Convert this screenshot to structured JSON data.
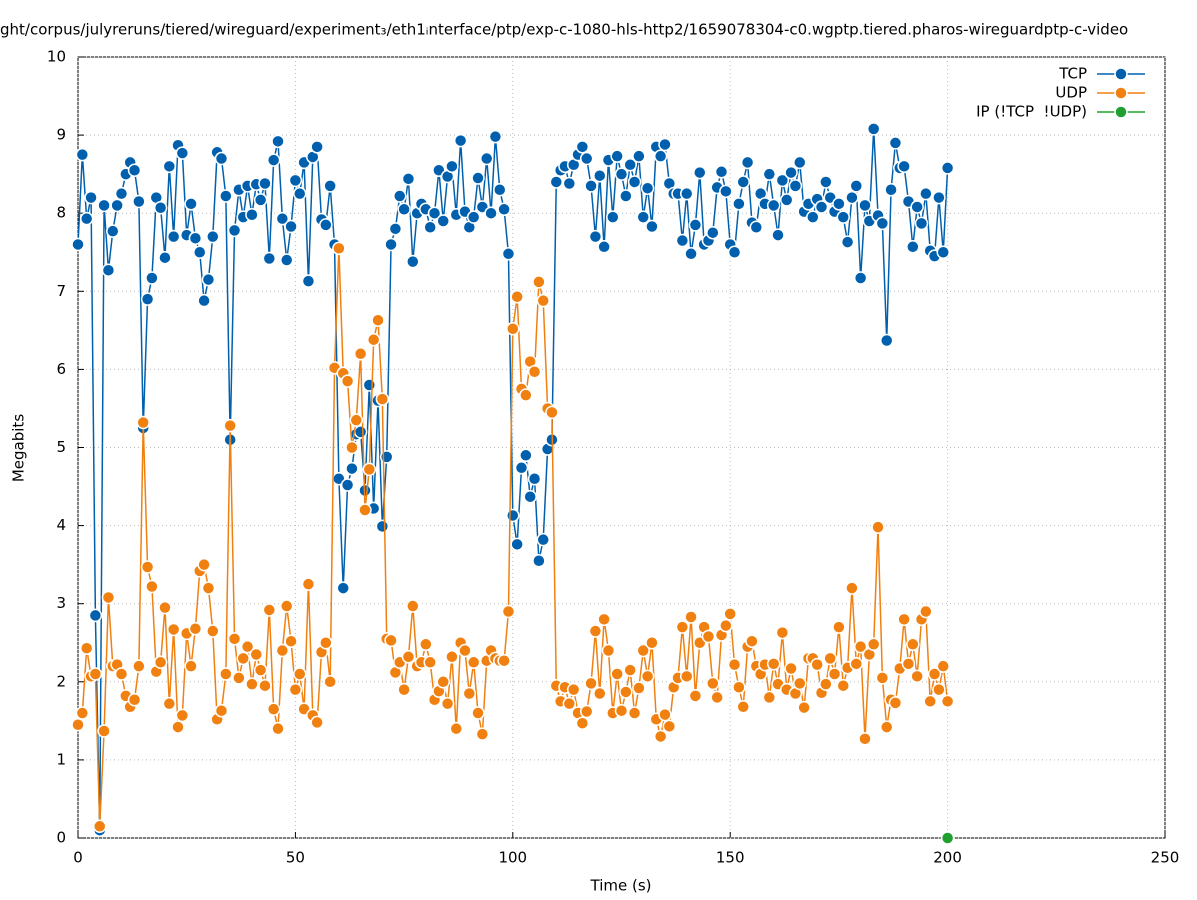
{
  "chart_data": {
    "type": "line",
    "title": "ght/corpus/julyreruns/tiered/wireguard/experiment₃/eth1ᵢnterface/ptp/exp-c-1080-hls-http2/1659078304-c0.wgptp.tiered.pharos-wireguardptp-c-video",
    "x_label": "Time (s)",
    "y_label": "Megabits",
    "xlim": [
      0,
      250
    ],
    "xticks": [
      0,
      50,
      100,
      150,
      200,
      250
    ],
    "ylim": [
      0,
      10
    ],
    "yticks": [
      0,
      1,
      2,
      3,
      4,
      5,
      6,
      7,
      8,
      9,
      10
    ],
    "grid": true,
    "legend": "upper right",
    "x": [
      0,
      1,
      2,
      3,
      4,
      5,
      6,
      7,
      8,
      9,
      10,
      11,
      12,
      13,
      14,
      15,
      16,
      17,
      18,
      19,
      20,
      21,
      22,
      23,
      24,
      25,
      26,
      27,
      28,
      29,
      30,
      31,
      32,
      33,
      34,
      35,
      36,
      37,
      38,
      39,
      40,
      41,
      42,
      43,
      44,
      45,
      46,
      47,
      48,
      49,
      50,
      51,
      52,
      53,
      54,
      55,
      56,
      57,
      58,
      59,
      60,
      61,
      62,
      63,
      64,
      65,
      66,
      67,
      68,
      69,
      70,
      71,
      72,
      73,
      74,
      75,
      76,
      77,
      78,
      79,
      80,
      81,
      82,
      83,
      84,
      85,
      86,
      87,
      88,
      89,
      90,
      91,
      92,
      93,
      94,
      95,
      96,
      97,
      98,
      99,
      100,
      101,
      102,
      103,
      104,
      105,
      106,
      107,
      108,
      109,
      110,
      111,
      112,
      113,
      114,
      115,
      116,
      117,
      118,
      119,
      120,
      121,
      122,
      123,
      124,
      125,
      126,
      127,
      128,
      129,
      130,
      131,
      132,
      133,
      134,
      135,
      136,
      137,
      138,
      139,
      140,
      141,
      142,
      143,
      144,
      145,
      146,
      147,
      148,
      149,
      150,
      151,
      152,
      153,
      154,
      155,
      156,
      157,
      158,
      159,
      160,
      161,
      162,
      163,
      164,
      165,
      166,
      167,
      168,
      169,
      170,
      171,
      172,
      173,
      174,
      175,
      176,
      177,
      178,
      179,
      180,
      181,
      182,
      183,
      184,
      185,
      186,
      187,
      188,
      189,
      190,
      191,
      192,
      193,
      194,
      195,
      196,
      197,
      198,
      199,
      200
    ],
    "series": [
      {
        "name": "TCP",
        "color": "#0060ad",
        "values": [
          7.6,
          8.75,
          7.93,
          8.2,
          2.85,
          0.1,
          8.1,
          7.27,
          7.77,
          8.1,
          8.25,
          8.5,
          8.65,
          8.55,
          8.15,
          5.25,
          6.9,
          7.17,
          8.2,
          8.07,
          7.43,
          8.6,
          7.7,
          8.87,
          8.77,
          7.72,
          8.12,
          7.68,
          7.5,
          6.88,
          7.15,
          7.7,
          8.78,
          8.7,
          8.22,
          5.1,
          7.78,
          8.3,
          7.95,
          8.35,
          7.98,
          8.37,
          8.17,
          8.38,
          7.42,
          8.68,
          8.92,
          7.93,
          7.4,
          7.83,
          8.42,
          8.25,
          8.65,
          7.13,
          8.72,
          8.85,
          7.92,
          7.85,
          8.35,
          7.6,
          4.6,
          3.2,
          4.52,
          4.73,
          5.17,
          5.2,
          4.45,
          5.8,
          4.22,
          5.6,
          3.99,
          4.88,
          7.6,
          7.8,
          8.22,
          8.05,
          8.44,
          7.38,
          8.0,
          8.12,
          8.05,
          7.82,
          8.0,
          8.55,
          7.9,
          8.47,
          8.6,
          7.98,
          8.93,
          8.02,
          7.82,
          7.95,
          8.45,
          8.08,
          8.7,
          8.0,
          8.98,
          8.3,
          8.05,
          7.48,
          4.13,
          3.76,
          4.74,
          4.9,
          4.37,
          4.6,
          3.55,
          3.82,
          4.98,
          5.1,
          8.4,
          8.55,
          8.6,
          8.38,
          8.62,
          8.75,
          8.85,
          8.7,
          8.35,
          7.7,
          8.48,
          7.57,
          8.68,
          7.95,
          8.73,
          8.5,
          8.22,
          8.62,
          8.4,
          8.73,
          7.95,
          8.32,
          7.83,
          8.85,
          8.73,
          8.88,
          8.38,
          8.25,
          8.25,
          7.65,
          8.25,
          7.48,
          7.85,
          8.52,
          7.6,
          7.65,
          7.75,
          8.33,
          8.53,
          8.28,
          7.6,
          7.5,
          8.12,
          8.4,
          8.65,
          7.88,
          7.82,
          8.25,
          8.12,
          8.5,
          8.1,
          7.72,
          8.42,
          8.17,
          8.52,
          8.35,
          8.65,
          8.02,
          8.12,
          7.95,
          8.18,
          8.08,
          8.4,
          8.2,
          8.02,
          8.12,
          7.95,
          7.63,
          8.2,
          8.35,
          7.17,
          8.1,
          7.9,
          9.08,
          7.97,
          7.87,
          6.37,
          8.3,
          8.9,
          8.58,
          8.6,
          8.15,
          7.57,
          8.08,
          7.87,
          8.25,
          7.52,
          7.45,
          8.2,
          7.5,
          8.58
        ]
      },
      {
        "name": "UDP",
        "color": "#f08010",
        "values": [
          1.45,
          1.6,
          2.43,
          2.07,
          2.1,
          0.15,
          1.37,
          3.08,
          2.2,
          2.22,
          2.1,
          1.82,
          1.68,
          1.77,
          2.2,
          5.32,
          3.47,
          3.22,
          2.13,
          2.25,
          2.95,
          1.72,
          2.67,
          1.42,
          1.57,
          2.62,
          2.2,
          2.68,
          3.42,
          3.5,
          3.2,
          2.65,
          1.52,
          1.63,
          2.1,
          5.28,
          2.55,
          2.05,
          2.3,
          2.45,
          1.97,
          2.35,
          2.15,
          1.95,
          2.92,
          1.65,
          1.4,
          2.4,
          2.97,
          2.52,
          1.9,
          2.1,
          1.65,
          3.25,
          1.57,
          1.48,
          2.38,
          2.5,
          2.0,
          6.02,
          7.55,
          5.95,
          5.85,
          5.0,
          5.35,
          6.2,
          4.2,
          4.72,
          6.38,
          6.63,
          5.62,
          2.55,
          2.53,
          2.12,
          2.25,
          1.9,
          2.32,
          2.97,
          2.2,
          2.25,
          2.48,
          2.25,
          1.77,
          1.88,
          2.0,
          1.72,
          2.32,
          1.4,
          2.5,
          2.4,
          1.85,
          2.25,
          1.6,
          1.33,
          2.27,
          2.4,
          2.3,
          2.27,
          2.27,
          2.9,
          6.52,
          6.93,
          5.75,
          5.67,
          6.1,
          5.97,
          7.12,
          6.88,
          5.5,
          5.45,
          1.95,
          1.75,
          1.93,
          1.72,
          1.9,
          1.6,
          1.47,
          1.62,
          1.98,
          2.65,
          1.85,
          2.8,
          2.4,
          1.6,
          2.1,
          1.63,
          1.87,
          2.15,
          1.6,
          1.92,
          2.4,
          2.07,
          2.5,
          1.52,
          1.3,
          1.58,
          1.43,
          1.93,
          2.05,
          2.7,
          2.07,
          2.83,
          1.82,
          2.5,
          2.7,
          2.58,
          1.98,
          1.8,
          2.6,
          2.72,
          2.87,
          2.22,
          1.93,
          1.68,
          2.45,
          2.52,
          2.2,
          2.1,
          2.22,
          1.8,
          2.23,
          1.97,
          2.63,
          1.9,
          2.17,
          1.85,
          1.98,
          1.67,
          2.3,
          2.3,
          2.22,
          1.86,
          1.97,
          2.3,
          2.1,
          2.7,
          1.95,
          2.18,
          3.2,
          2.23,
          2.45,
          1.27,
          2.35,
          2.48,
          3.98,
          2.05,
          1.42,
          1.77,
          1.73,
          2.17,
          2.8,
          2.23,
          2.48,
          2.07,
          2.8,
          2.9,
          1.75,
          2.1,
          1.9,
          2.2,
          1.75
        ]
      },
      {
        "name": "IP (!TCP  !UDP)",
        "color": "#20a030",
        "x": [
          200
        ],
        "values": [
          0
        ]
      }
    ]
  }
}
